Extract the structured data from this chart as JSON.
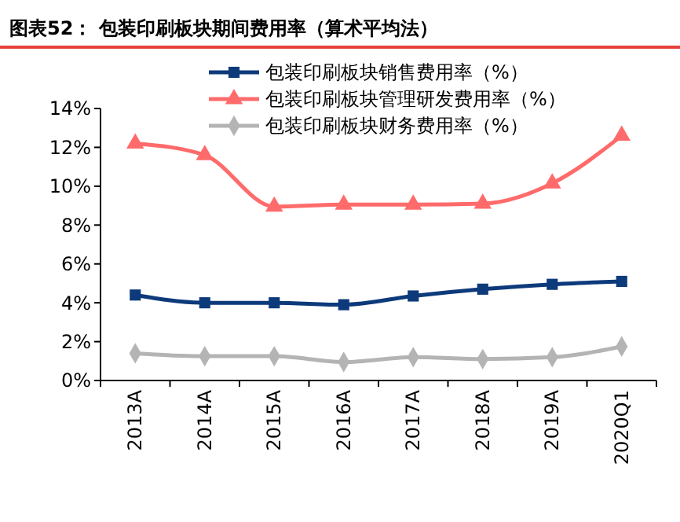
{
  "chart_data": {
    "type": "line",
    "title": "图表52：  包装印刷板块期间费用率（算术平均法）",
    "categories": [
      "2013A",
      "2014A",
      "2015A",
      "2016A",
      "2017A",
      "2018A",
      "2019A",
      "2020Q1"
    ],
    "series": [
      {
        "name": "包装印刷板块销售费用率（%）",
        "color": "#0d3a7a",
        "marker": "square",
        "values": [
          4.4,
          4.0,
          4.0,
          3.9,
          4.35,
          4.7,
          4.95,
          5.1
        ]
      },
      {
        "name": "包装印刷板块管理研发费用率（%）",
        "color": "#ff6b6b",
        "marker": "triangle",
        "values": [
          12.2,
          11.6,
          8.95,
          9.05,
          9.05,
          9.1,
          10.15,
          12.6
        ]
      },
      {
        "name": "包装印刷板块财务费用率（%）",
        "color": "#b4b4b4",
        "marker": "diamond",
        "values": [
          1.4,
          1.25,
          1.25,
          0.95,
          1.2,
          1.1,
          1.2,
          1.75
        ]
      }
    ],
    "ylim": [
      0,
      14
    ],
    "yticks": [
      {
        "value": 0,
        "label": "0%"
      },
      {
        "value": 2,
        "label": "2%"
      },
      {
        "value": 4,
        "label": "4%"
      },
      {
        "value": 6,
        "label": "6%"
      },
      {
        "value": 8,
        "label": "8%"
      },
      {
        "value": 10,
        "label": "10%"
      },
      {
        "value": 12,
        "label": "12%"
      },
      {
        "value": 14,
        "label": "14%"
      }
    ],
    "legend": "top",
    "grid": false,
    "line_style": "solid"
  }
}
